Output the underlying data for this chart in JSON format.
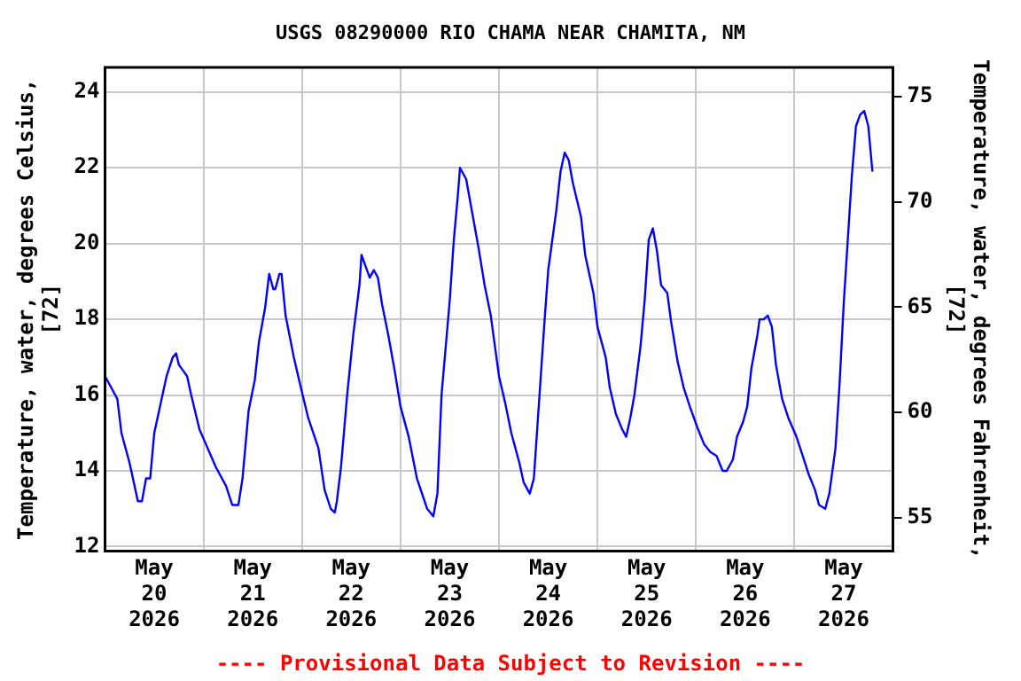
{
  "chart_data": {
    "type": "line",
    "title": "USGS 08290000 RIO CHAMA NEAR CHAMITA, NM",
    "ylabel": "Temperature, water, degrees Celsius,\n[72]",
    "y2label": "Temperature, water, degrees Fahrenheit,\n[72]",
    "annotations": [
      "---- Provisional Data Subject to Revision ----"
    ],
    "x": [
      "2026-05-20T00:00",
      "2026-05-20T01:00",
      "2026-05-20T03:00",
      "2026-05-20T04:00",
      "2026-05-20T06:00",
      "2026-05-20T07:00",
      "2026-05-20T08:00",
      "2026-05-20T09:00",
      "2026-05-20T10:00",
      "2026-05-20T11:00",
      "2026-05-20T12:00",
      "2026-05-20T14:00",
      "2026-05-20T15:00",
      "2026-05-20T16:30",
      "2026-05-20T17:20",
      "2026-05-20T18:00",
      "2026-05-20T20:00",
      "2026-05-20T21:00",
      "2026-05-20T23:00",
      "2026-05-21T01:00",
      "2026-05-21T03:00",
      "2026-05-21T05:30",
      "2026-05-21T07:00",
      "2026-05-21T08:30",
      "2026-05-21T09:30",
      "2026-05-21T11:00",
      "2026-05-21T12:30",
      "2026-05-21T13:30",
      "2026-05-21T15:00",
      "2026-05-21T16:00",
      "2026-05-21T17:00",
      "2026-05-21T17:30",
      "2026-05-21T18:30",
      "2026-05-21T19:00",
      "2026-05-21T20:00",
      "2026-05-21T22:00",
      "2026-05-21T23:30",
      "2026-05-22T01:30",
      "2026-05-22T04:00",
      "2026-05-22T05:30",
      "2026-05-22T07:00",
      "2026-05-22T08:00",
      "2026-05-22T08:30",
      "2026-05-22T09:30",
      "2026-05-22T11:00",
      "2026-05-22T12:30",
      "2026-05-22T14:00",
      "2026-05-22T14:30",
      "2026-05-22T15:30",
      "2026-05-22T16:30",
      "2026-05-22T17:30",
      "2026-05-22T18:30",
      "2026-05-22T19:30",
      "2026-05-22T21:00",
      "2026-05-22T22:30",
      "2026-05-23T00:00",
      "2026-05-23T02:00",
      "2026-05-23T04:00",
      "2026-05-23T06:30",
      "2026-05-23T08:00",
      "2026-05-23T09:00",
      "2026-05-23T10:00",
      "2026-05-23T12:00",
      "2026-05-23T13:00",
      "2026-05-23T14:00",
      "2026-05-23T14:30",
      "2026-05-23T16:00",
      "2026-05-23T17:30",
      "2026-05-23T19:00",
      "2026-05-23T20:30",
      "2026-05-23T22:00",
      "2026-05-24T00:00",
      "2026-05-24T01:30",
      "2026-05-24T03:00",
      "2026-05-24T05:00",
      "2026-05-24T06:00",
      "2026-05-24T07:30",
      "2026-05-24T08:30",
      "2026-05-24T09:30",
      "2026-05-24T11:00",
      "2026-05-24T12:00",
      "2026-05-24T12:30",
      "2026-05-24T14:00",
      "2026-05-24T15:00",
      "2026-05-24T16:00",
      "2026-05-24T17:00",
      "2026-05-24T18:00",
      "2026-05-24T20:00",
      "2026-05-24T21:00",
      "2026-05-24T23:00",
      "2026-05-25T00:00",
      "2026-05-25T02:00",
      "2026-05-25T03:00",
      "2026-05-25T04:30",
      "2026-05-25T06:00",
      "2026-05-25T07:00",
      "2026-05-25T08:00",
      "2026-05-25T09:00",
      "2026-05-25T10:30",
      "2026-05-25T11:30",
      "2026-05-25T12:30",
      "2026-05-25T13:30",
      "2026-05-25T14:30",
      "2026-05-25T15:30",
      "2026-05-25T17:00",
      "2026-05-25T18:00",
      "2026-05-25T19:30",
      "2026-05-25T21:00",
      "2026-05-25T22:30",
      "2026-05-26T00:30",
      "2026-05-26T02:00",
      "2026-05-26T03:30",
      "2026-05-26T05:00",
      "2026-05-26T06:30",
      "2026-05-26T07:30",
      "2026-05-26T09:00",
      "2026-05-26T10:00",
      "2026-05-26T11:30",
      "2026-05-26T12:30",
      "2026-05-26T13:30",
      "2026-05-26T15:00",
      "2026-05-26T15:30",
      "2026-05-26T16:30",
      "2026-05-26T17:30",
      "2026-05-26T18:30",
      "2026-05-26T19:30",
      "2026-05-26T21:00",
      "2026-05-26T22:30",
      "2026-05-27T00:30",
      "2026-05-27T02:00",
      "2026-05-27T03:30",
      "2026-05-27T05:00",
      "2026-05-27T06:00",
      "2026-05-27T07:30",
      "2026-05-27T08:30",
      "2026-05-27T10:00",
      "2026-05-27T11:00",
      "2026-05-27T12:00",
      "2026-05-27T13:00",
      "2026-05-27T14:00",
      "2026-05-27T15:00",
      "2026-05-27T16:00",
      "2026-05-27T17:00",
      "2026-05-27T18:00",
      "2026-05-27T18:30",
      "2026-05-27T19:00"
    ],
    "series": [
      {
        "color": "#0000ff",
        "values": [
          16.5,
          16.3,
          15.9,
          15,
          14.2,
          13.7,
          13.2,
          13.2,
          13.8,
          13.8,
          15,
          16,
          16.5,
          17,
          17.1,
          16.8,
          16.5,
          16,
          15.1,
          14.6,
          14.1,
          13.6,
          13.1,
          13.1,
          13.8,
          15.6,
          16.4,
          17.4,
          18.3,
          19.2,
          18.8,
          18.8,
          19.2,
          19.2,
          18.1,
          17,
          16.3,
          15.4,
          14.6,
          13.5,
          13,
          12.9,
          13.2,
          14.1,
          16,
          17.6,
          18.9,
          19.7,
          19.4,
          19.1,
          19.3,
          19.1,
          18.4,
          17.6,
          16.7,
          15.7,
          14.9,
          13.8,
          13,
          12.8,
          13.4,
          16,
          18.5,
          20.1,
          21.3,
          22,
          21.7,
          20.8,
          19.9,
          18.9,
          18.1,
          16.5,
          15.8,
          15,
          14.2,
          13.7,
          13.4,
          13.8,
          15.4,
          17.8,
          19.3,
          19.7,
          20.9,
          21.9,
          22.4,
          22.2,
          21.6,
          20.7,
          19.7,
          18.7,
          17.8,
          17,
          16.2,
          15.5,
          15.1,
          14.9,
          15.4,
          16,
          17.3,
          18.5,
          20.1,
          20.4,
          19.8,
          18.9,
          18.7,
          17.9,
          16.9,
          16.2,
          15.7,
          15.1,
          14.7,
          14.5,
          14.4,
          14,
          14,
          14.3,
          14.9,
          15.3,
          15.7,
          16.7,
          17.6,
          18,
          18,
          18.1,
          17.8,
          16.8,
          15.9,
          15.4,
          14.9,
          14.4,
          13.9,
          13.5,
          13.1,
          13,
          13.4,
          14.6,
          16.3,
          18.4,
          20.1,
          21.8,
          23.1,
          23.4,
          23.5,
          23.1,
          22.5,
          21.9
        ]
      }
    ],
    "xlim": [
      "2026-05-20T00:00",
      "2026-05-28T00:00"
    ],
    "xticks": [
      {
        "value": "2026-05-20T12:00",
        "label": "May 20 2026"
      },
      {
        "value": "2026-05-21T00:00",
        "label": null
      },
      {
        "value": "2026-05-21T12:00",
        "label": "May 21 2026"
      },
      {
        "value": "2026-05-22T00:00",
        "label": null
      },
      {
        "value": "2026-05-22T12:00",
        "label": "May 22 2026"
      },
      {
        "value": "2026-05-23T00:00",
        "label": null
      },
      {
        "value": "2026-05-23T12:00",
        "label": "May 23 2026"
      },
      {
        "value": "2026-05-24T00:00",
        "label": null
      },
      {
        "value": "2026-05-24T12:00",
        "label": "May 24 2026"
      },
      {
        "value": "2026-05-25T00:00",
        "label": null
      },
      {
        "value": "2026-05-25T12:00",
        "label": "May 25 2026"
      },
      {
        "value": "2026-05-26T00:00",
        "label": null
      },
      {
        "value": "2026-05-26T12:00",
        "label": "May 26 2026"
      },
      {
        "value": "2026-05-27T00:00",
        "label": null
      },
      {
        "value": "2026-05-27T12:00",
        "label": "May 27 2026"
      }
    ],
    "ylim": [
      11.88,
      24.65
    ],
    "yticks": [
      12,
      14,
      16,
      18,
      20,
      22,
      24
    ],
    "y2lim": [
      53.4,
      76.4
    ],
    "y2ticks": [
      55,
      60,
      65,
      70,
      75
    ],
    "grid": true,
    "legend": false,
    "marker": "none",
    "line_style": "solid"
  }
}
